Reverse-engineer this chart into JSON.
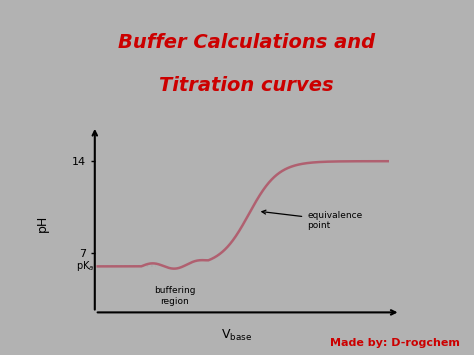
{
  "title_line1": "Buffer Calculations and",
  "title_line2": "Titration curves",
  "title_color": "#cc0000",
  "title_fontsize": 14,
  "background_color": "#b2b2b2",
  "plot_bg_color": "#b2b2b2",
  "curve_color": "#b06070",
  "curve_linewidth": 1.8,
  "ylabel": "pH",
  "pka_value": 6.0,
  "equivalence_label": "equivalence\npoint",
  "buffering_label": "buffering\nregion",
  "watermark": "Made by: D-rogchem",
  "watermark_color": "#cc0000",
  "watermark_fontsize": 8,
  "dashed_color": "#aaaaaa"
}
